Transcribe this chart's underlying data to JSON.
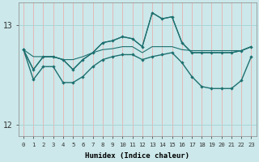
{
  "xlabel": "Humidex (Indice chaleur)",
  "ylabel": "",
  "bg_color": "#cce8ea",
  "line_color": "#1e7070",
  "horiz_grid_color": "#aad4d6",
  "vert_grid_color": "#e8b0b0",
  "xlim": [
    -0.5,
    23.5
  ],
  "ylim": [
    11.88,
    13.22
  ],
  "yticks": [
    12,
    13
  ],
  "xticks": [
    0,
    1,
    2,
    3,
    4,
    5,
    6,
    7,
    8,
    9,
    10,
    11,
    12,
    13,
    14,
    15,
    16,
    17,
    18,
    19,
    20,
    21,
    22,
    23
  ],
  "series": [
    {
      "y": [
        12.75,
        12.55,
        12.68,
        12.68,
        12.65,
        12.55,
        12.65,
        12.72,
        12.82,
        12.84,
        12.88,
        12.86,
        12.78,
        13.12,
        13.06,
        13.08,
        12.82,
        12.72,
        12.72,
        12.72,
        12.72,
        12.72,
        12.74,
        12.78
      ],
      "markers": true,
      "lw": 1.0
    },
    {
      "y": [
        12.75,
        12.55,
        12.68,
        12.68,
        12.65,
        12.55,
        12.65,
        12.72,
        12.82,
        12.84,
        12.88,
        12.86,
        12.78,
        13.12,
        13.06,
        13.08,
        12.82,
        12.72,
        12.72,
        12.72,
        12.72,
        12.72,
        12.74,
        12.78
      ],
      "markers": false,
      "lw": 0.8
    },
    {
      "y": [
        12.75,
        12.68,
        12.68,
        12.68,
        12.65,
        12.65,
        12.68,
        12.72,
        12.75,
        12.76,
        12.78,
        12.78,
        12.72,
        12.78,
        12.78,
        12.78,
        12.75,
        12.74,
        12.74,
        12.74,
        12.74,
        12.74,
        12.74,
        12.78
      ],
      "markers": false,
      "lw": 0.8
    },
    {
      "y": [
        12.75,
        12.45,
        12.58,
        12.58,
        12.42,
        12.42,
        12.48,
        12.58,
        12.65,
        12.68,
        12.7,
        12.7,
        12.65,
        12.68,
        12.7,
        12.72,
        12.62,
        12.48,
        12.38,
        12.36,
        12.36,
        12.36,
        12.44,
        12.68
      ],
      "markers": true,
      "lw": 1.0
    }
  ]
}
